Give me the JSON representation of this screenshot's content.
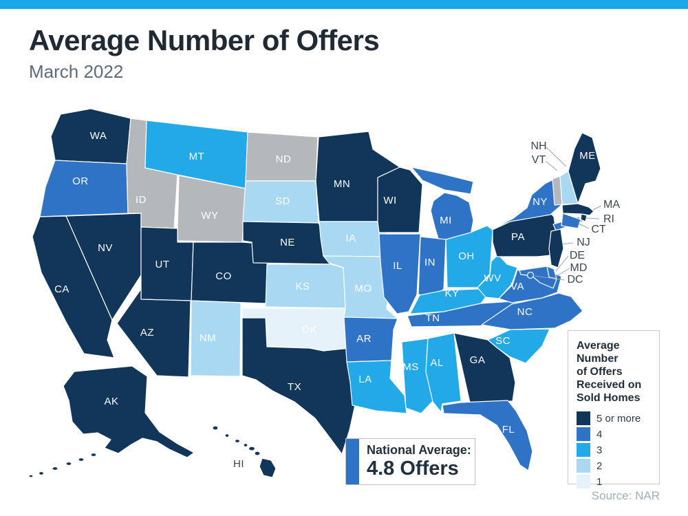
{
  "window": {
    "top_bar_color": "#1AA7E8",
    "background": "#FFFFFF"
  },
  "header": {
    "title": "Average Number of Offers",
    "subtitle": "March 2022"
  },
  "legend": {
    "title_lines": [
      "Average",
      "Number",
      "of Offers",
      "Received on",
      "Sold Homes"
    ],
    "items": [
      {
        "label": "5 or more",
        "color": "#113659"
      },
      {
        "label": "4",
        "color": "#2E73C5"
      },
      {
        "label": "3",
        "color": "#21AAE7"
      },
      {
        "label": "2",
        "color": "#A9D9F2"
      },
      {
        "label": "1",
        "color": "#E5F2FA"
      }
    ],
    "no_data_color": "#B5B8BB"
  },
  "national_average": {
    "label": "National Average:",
    "value": "4.8 Offers",
    "accent_color": "#2E73C5"
  },
  "source": "Source: NAR",
  "map": {
    "callouts": [
      {
        "id": "NH",
        "label": "NH"
      },
      {
        "id": "VT",
        "label": "VT"
      },
      {
        "id": "MA",
        "label": "MA"
      },
      {
        "id": "RI",
        "label": "RI"
      },
      {
        "id": "CT",
        "label": "CT"
      },
      {
        "id": "NJ",
        "label": "NJ"
      },
      {
        "id": "DE",
        "label": "DE"
      },
      {
        "id": "MD",
        "label": "MD"
      },
      {
        "id": "DC",
        "label": "DC"
      }
    ],
    "border_color": "#FFFFFF",
    "callout_line_color": "#9BA3A9",
    "callout_text_color": "#39454F",
    "state_label_color": "#FFFFFF",
    "dark_label_color": "#3A4650"
  },
  "chart_data": {
    "type": "choropleth",
    "title": "Average Number of Offers",
    "subtitle": "March 2022",
    "legend_title": "Average Number of Offers Received on Sold Homes",
    "buckets": [
      "5 or more",
      "4",
      "3",
      "2",
      "1"
    ],
    "no_data": [
      "ID",
      "WY",
      "ND",
      "VT"
    ],
    "national_average": "4.8 Offers",
    "source": "NAR",
    "values": {
      "WA": "5 or more",
      "OR": "4",
      "CA": "5 or more",
      "NV": "5 or more",
      "ID": "no data",
      "MT": "3",
      "WY": "no data",
      "UT": "5 or more",
      "CO": "5 or more",
      "AZ": "5 or more",
      "NM": "2",
      "ND": "no data",
      "SD": "2",
      "NE": "5 or more",
      "KS": "2",
      "OK": "1",
      "TX": "5 or more",
      "MN": "5 or more",
      "IA": "2",
      "MO": "2",
      "AR": "4",
      "LA": "3",
      "WI": "5 or more",
      "IL": "4",
      "MI": "4",
      "IN": "4",
      "OH": "3",
      "KY": "3",
      "TN": "4",
      "MS": "3",
      "AL": "3",
      "GA": "5 or more",
      "SC": "3",
      "NC": "4",
      "VA": "4",
      "WV": "3",
      "FL": "4",
      "PA": "5 or more",
      "NY": "4",
      "VT": "no data",
      "NH": "2",
      "ME": "5 or more",
      "MA": "5 or more",
      "RI": "5 or more",
      "CT": "4",
      "NJ": "5 or more",
      "DE": "4",
      "MD": "4",
      "DC": "4",
      "AK": "5 or more",
      "HI": "5 or more"
    }
  }
}
